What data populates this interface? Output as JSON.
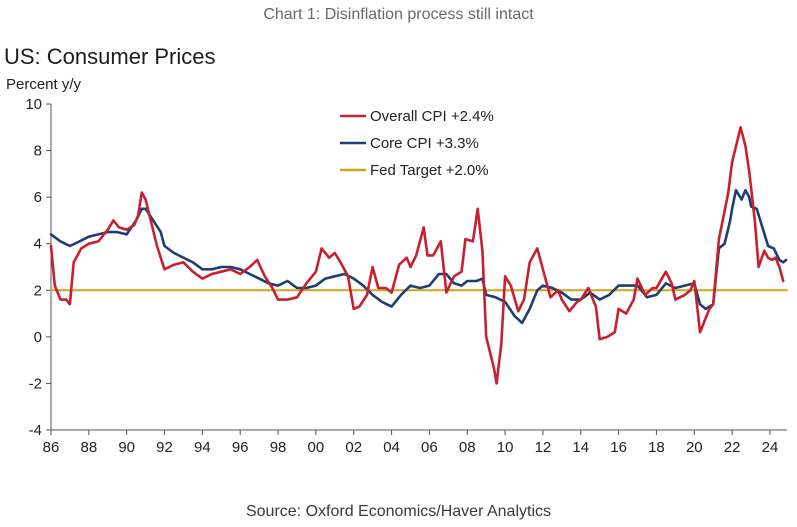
{
  "caption": "Chart 1: Disinflation process still intact",
  "source": "Source: Oxford Economics/Haver Analytics",
  "chart_data": {
    "type": "line",
    "title": "US: Consumer Prices",
    "ylabel": "Percent y/y",
    "xlabel": "",
    "xlim": [
      1986,
      2024.9
    ],
    "ylim": [
      -4,
      10
    ],
    "y_ticks": [
      -4,
      -2,
      0,
      2,
      4,
      6,
      8,
      10
    ],
    "x_ticks": [
      {
        "value": 1986,
        "label": "86"
      },
      {
        "value": 1988,
        "label": "88"
      },
      {
        "value": 1990,
        "label": "90"
      },
      {
        "value": 1992,
        "label": "92"
      },
      {
        "value": 1994,
        "label": "94"
      },
      {
        "value": 1996,
        "label": "96"
      },
      {
        "value": 1998,
        "label": "98"
      },
      {
        "value": 2000,
        "label": "00"
      },
      {
        "value": 2002,
        "label": "02"
      },
      {
        "value": 2004,
        "label": "04"
      },
      {
        "value": 2006,
        "label": "06"
      },
      {
        "value": 2008,
        "label": "08"
      },
      {
        "value": 2010,
        "label": "10"
      },
      {
        "value": 2012,
        "label": "12"
      },
      {
        "value": 2014,
        "label": "14"
      },
      {
        "value": 2016,
        "label": "16"
      },
      {
        "value": 2018,
        "label": "18"
      },
      {
        "value": 2020,
        "label": "20"
      },
      {
        "value": 2022,
        "label": "22"
      },
      {
        "value": 2024,
        "label": "24"
      }
    ],
    "grid": false,
    "legend_position": "top-center",
    "series": [
      {
        "name": "Overall CPI +2.4%",
        "color": "#c8202f",
        "points": [
          [
            1986.0,
            3.9
          ],
          [
            1986.2,
            2.2
          ],
          [
            1986.5,
            1.6
          ],
          [
            1986.8,
            1.6
          ],
          [
            1987.0,
            1.4
          ],
          [
            1987.2,
            3.2
          ],
          [
            1987.6,
            3.8
          ],
          [
            1988.0,
            4.0
          ],
          [
            1988.5,
            4.1
          ],
          [
            1989.0,
            4.6
          ],
          [
            1989.3,
            5.0
          ],
          [
            1989.6,
            4.7
          ],
          [
            1990.0,
            4.6
          ],
          [
            1990.4,
            4.8
          ],
          [
            1990.6,
            5.2
          ],
          [
            1990.8,
            6.2
          ],
          [
            1991.0,
            5.9
          ],
          [
            1991.3,
            4.9
          ],
          [
            1991.6,
            3.9
          ],
          [
            1992.0,
            2.9
          ],
          [
            1992.5,
            3.1
          ],
          [
            1993.0,
            3.2
          ],
          [
            1993.5,
            2.8
          ],
          [
            1994.0,
            2.5
          ],
          [
            1994.5,
            2.7
          ],
          [
            1995.0,
            2.8
          ],
          [
            1995.5,
            2.9
          ],
          [
            1996.0,
            2.7
          ],
          [
            1996.5,
            3.0
          ],
          [
            1996.9,
            3.3
          ],
          [
            1997.3,
            2.6
          ],
          [
            1997.7,
            2.1
          ],
          [
            1998.0,
            1.6
          ],
          [
            1998.5,
            1.6
          ],
          [
            1999.0,
            1.7
          ],
          [
            1999.5,
            2.3
          ],
          [
            2000.0,
            2.8
          ],
          [
            2000.3,
            3.8
          ],
          [
            2000.7,
            3.4
          ],
          [
            2001.0,
            3.6
          ],
          [
            2001.3,
            3.2
          ],
          [
            2001.7,
            2.6
          ],
          [
            2002.0,
            1.2
          ],
          [
            2002.3,
            1.3
          ],
          [
            2002.7,
            1.8
          ],
          [
            2003.0,
            3.0
          ],
          [
            2003.3,
            2.1
          ],
          [
            2003.7,
            2.1
          ],
          [
            2004.0,
            1.9
          ],
          [
            2004.4,
            3.1
          ],
          [
            2004.8,
            3.4
          ],
          [
            2005.0,
            3.0
          ],
          [
            2005.3,
            3.5
          ],
          [
            2005.7,
            4.7
          ],
          [
            2005.9,
            3.5
          ],
          [
            2006.2,
            3.5
          ],
          [
            2006.6,
            4.1
          ],
          [
            2006.9,
            1.9
          ],
          [
            2007.3,
            2.6
          ],
          [
            2007.7,
            2.8
          ],
          [
            2007.9,
            4.2
          ],
          [
            2008.3,
            4.1
          ],
          [
            2008.55,
            5.5
          ],
          [
            2008.8,
            3.7
          ],
          [
            2009.0,
            0.0
          ],
          [
            2009.4,
            -1.3
          ],
          [
            2009.55,
            -2.0
          ],
          [
            2009.8,
            -0.3
          ],
          [
            2010.0,
            2.6
          ],
          [
            2010.3,
            2.2
          ],
          [
            2010.7,
            1.1
          ],
          [
            2011.0,
            1.6
          ],
          [
            2011.3,
            3.2
          ],
          [
            2011.7,
            3.8
          ],
          [
            2012.0,
            2.9
          ],
          [
            2012.4,
            1.7
          ],
          [
            2012.8,
            2.0
          ],
          [
            2013.0,
            1.6
          ],
          [
            2013.4,
            1.1
          ],
          [
            2013.8,
            1.5
          ],
          [
            2014.0,
            1.6
          ],
          [
            2014.4,
            2.1
          ],
          [
            2014.8,
            1.3
          ],
          [
            2015.0,
            -0.1
          ],
          [
            2015.4,
            0.0
          ],
          [
            2015.8,
            0.2
          ],
          [
            2016.0,
            1.2
          ],
          [
            2016.4,
            1.0
          ],
          [
            2016.8,
            1.6
          ],
          [
            2017.0,
            2.5
          ],
          [
            2017.4,
            1.8
          ],
          [
            2017.8,
            2.1
          ],
          [
            2018.0,
            2.1
          ],
          [
            2018.5,
            2.8
          ],
          [
            2018.8,
            2.3
          ],
          [
            2019.0,
            1.6
          ],
          [
            2019.5,
            1.8
          ],
          [
            2019.8,
            2.0
          ],
          [
            2020.0,
            2.4
          ],
          [
            2020.3,
            0.2
          ],
          [
            2020.5,
            0.6
          ],
          [
            2020.8,
            1.2
          ],
          [
            2021.0,
            1.4
          ],
          [
            2021.3,
            4.2
          ],
          [
            2021.6,
            5.4
          ],
          [
            2021.8,
            6.2
          ],
          [
            2022.0,
            7.5
          ],
          [
            2022.3,
            8.5
          ],
          [
            2022.45,
            9.0
          ],
          [
            2022.7,
            8.2
          ],
          [
            2022.9,
            7.1
          ],
          [
            2023.0,
            6.4
          ],
          [
            2023.2,
            5.0
          ],
          [
            2023.4,
            3.0
          ],
          [
            2023.7,
            3.7
          ],
          [
            2023.9,
            3.4
          ],
          [
            2024.1,
            3.3
          ],
          [
            2024.3,
            3.4
          ],
          [
            2024.5,
            3.0
          ],
          [
            2024.7,
            2.4
          ]
        ]
      },
      {
        "name": "Core CPI +3.3%",
        "color": "#1d3f73",
        "points": [
          [
            1986.0,
            4.4
          ],
          [
            1986.5,
            4.1
          ],
          [
            1987.0,
            3.9
          ],
          [
            1987.5,
            4.1
          ],
          [
            1988.0,
            4.3
          ],
          [
            1988.5,
            4.4
          ],
          [
            1989.0,
            4.5
          ],
          [
            1989.5,
            4.5
          ],
          [
            1990.0,
            4.4
          ],
          [
            1990.5,
            5.0
          ],
          [
            1990.8,
            5.5
          ],
          [
            1991.0,
            5.5
          ],
          [
            1991.4,
            5.0
          ],
          [
            1991.8,
            4.5
          ],
          [
            1992.0,
            3.9
          ],
          [
            1992.5,
            3.6
          ],
          [
            1993.0,
            3.4
          ],
          [
            1993.5,
            3.2
          ],
          [
            1994.0,
            2.9
          ],
          [
            1994.5,
            2.9
          ],
          [
            1995.0,
            3.0
          ],
          [
            1995.5,
            3.0
          ],
          [
            1996.0,
            2.9
          ],
          [
            1996.5,
            2.7
          ],
          [
            1997.0,
            2.5
          ],
          [
            1997.5,
            2.3
          ],
          [
            1998.0,
            2.2
          ],
          [
            1998.5,
            2.4
          ],
          [
            1999.0,
            2.1
          ],
          [
            1999.5,
            2.1
          ],
          [
            2000.0,
            2.2
          ],
          [
            2000.5,
            2.5
          ],
          [
            2001.0,
            2.6
          ],
          [
            2001.5,
            2.7
          ],
          [
            2002.0,
            2.5
          ],
          [
            2002.5,
            2.2
          ],
          [
            2003.0,
            1.8
          ],
          [
            2003.5,
            1.5
          ],
          [
            2004.0,
            1.3
          ],
          [
            2004.5,
            1.8
          ],
          [
            2005.0,
            2.2
          ],
          [
            2005.5,
            2.1
          ],
          [
            2006.0,
            2.2
          ],
          [
            2006.5,
            2.7
          ],
          [
            2006.9,
            2.7
          ],
          [
            2007.3,
            2.3
          ],
          [
            2007.7,
            2.2
          ],
          [
            2008.0,
            2.4
          ],
          [
            2008.5,
            2.4
          ],
          [
            2008.8,
            2.5
          ],
          [
            2009.0,
            1.8
          ],
          [
            2009.5,
            1.7
          ],
          [
            2010.0,
            1.5
          ],
          [
            2010.5,
            0.9
          ],
          [
            2010.9,
            0.6
          ],
          [
            2011.3,
            1.2
          ],
          [
            2011.7,
            2.0
          ],
          [
            2012.0,
            2.2
          ],
          [
            2012.5,
            2.1
          ],
          [
            2013.0,
            1.9
          ],
          [
            2013.5,
            1.6
          ],
          [
            2014.0,
            1.6
          ],
          [
            2014.5,
            1.9
          ],
          [
            2015.0,
            1.6
          ],
          [
            2015.5,
            1.8
          ],
          [
            2016.0,
            2.2
          ],
          [
            2016.5,
            2.2
          ],
          [
            2017.0,
            2.2
          ],
          [
            2017.5,
            1.7
          ],
          [
            2018.0,
            1.8
          ],
          [
            2018.5,
            2.3
          ],
          [
            2019.0,
            2.1
          ],
          [
            2019.5,
            2.2
          ],
          [
            2020.0,
            2.3
          ],
          [
            2020.3,
            1.4
          ],
          [
            2020.6,
            1.2
          ],
          [
            2021.0,
            1.4
          ],
          [
            2021.3,
            3.8
          ],
          [
            2021.6,
            4.0
          ],
          [
            2021.9,
            5.0
          ],
          [
            2022.0,
            5.5
          ],
          [
            2022.2,
            6.3
          ],
          [
            2022.5,
            5.9
          ],
          [
            2022.7,
            6.3
          ],
          [
            2022.9,
            6.0
          ],
          [
            2023.0,
            5.6
          ],
          [
            2023.3,
            5.5
          ],
          [
            2023.6,
            4.7
          ],
          [
            2023.9,
            3.9
          ],
          [
            2024.2,
            3.8
          ],
          [
            2024.5,
            3.3
          ],
          [
            2024.7,
            3.2
          ],
          [
            2024.85,
            3.3
          ]
        ]
      },
      {
        "name": "Fed Target +2.0%",
        "color": "#d4a21a",
        "points": [
          [
            1986.0,
            2.0
          ],
          [
            2024.9,
            2.0
          ]
        ]
      }
    ]
  }
}
